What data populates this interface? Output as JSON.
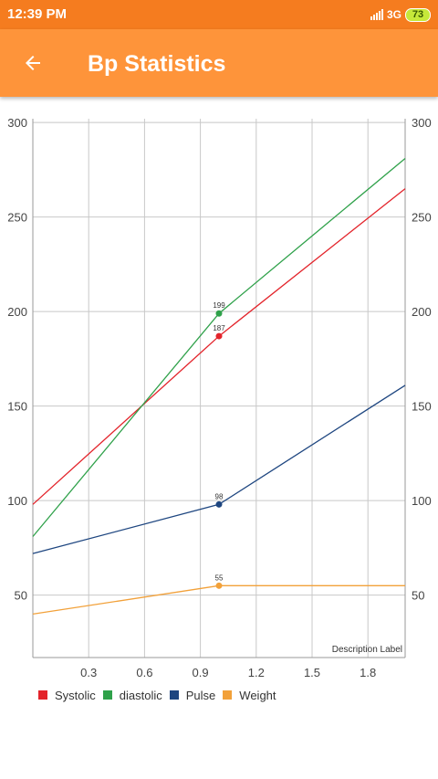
{
  "status_bar": {
    "time": "12:39 PM",
    "network": "3G",
    "battery": "73",
    "signal_icon": "signal-bars-icon",
    "battery_icon": "battery-icon"
  },
  "app_bar": {
    "title": "Bp Statistics",
    "back_icon": "back-arrow-icon",
    "background": "#fe943a"
  },
  "chart_data": {
    "type": "line",
    "description": "Description Label",
    "x_tick_labels": [
      "0.3",
      "0.6",
      "0.9",
      "1.2",
      "1.5",
      "1.8"
    ],
    "y_tick_labels": [
      "50",
      "100",
      "150",
      "200",
      "250",
      "300"
    ],
    "xlim": [
      0,
      2
    ],
    "ylim": [
      17,
      302
    ],
    "grid": true,
    "right_axis": true,
    "legend_position": "bottom-left",
    "series": [
      {
        "name": "Systolic",
        "color": "#e3242b",
        "x": [
          0,
          1,
          2
        ],
        "y": [
          98,
          187,
          265
        ],
        "value_label": "187"
      },
      {
        "name": "diastolic",
        "color": "#2fa14a",
        "x": [
          0,
          1,
          2
        ],
        "y": [
          81,
          199,
          281
        ],
        "value_label": "199"
      },
      {
        "name": "Pulse",
        "color": "#1e4680",
        "x": [
          0,
          1,
          2
        ],
        "y": [
          72,
          98,
          161
        ],
        "value_label": "98"
      },
      {
        "name": "Weight",
        "color": "#f2a13a",
        "x": [
          0,
          1,
          2
        ],
        "y": [
          40,
          55,
          55
        ],
        "value_label": "55"
      }
    ]
  }
}
